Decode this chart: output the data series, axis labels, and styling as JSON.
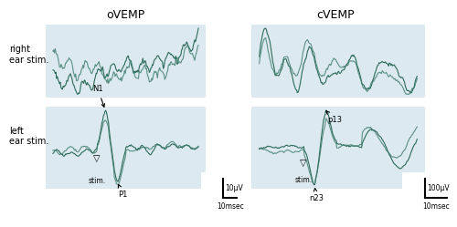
{
  "title_ovemp": "oVEMP",
  "title_cvemp": "cVEMP",
  "label_right": "right\near stim.",
  "label_left": "left\near stim.",
  "bg_color": "#dce9f0",
  "line_color1": "#2d6b5a",
  "line_color2": "#3a7a6a",
  "fig_bg": "#ffffff",
  "scale_ovemp_label": "10μV",
  "scale_ovemp_time": "10msec",
  "scale_cvemp_label": "100μV",
  "scale_cvemp_time": "10msec",
  "stim_label": "stim.",
  "n1_label": "N1",
  "p1_label": "P1",
  "n23_label": "n23",
  "p13_label": "p13"
}
